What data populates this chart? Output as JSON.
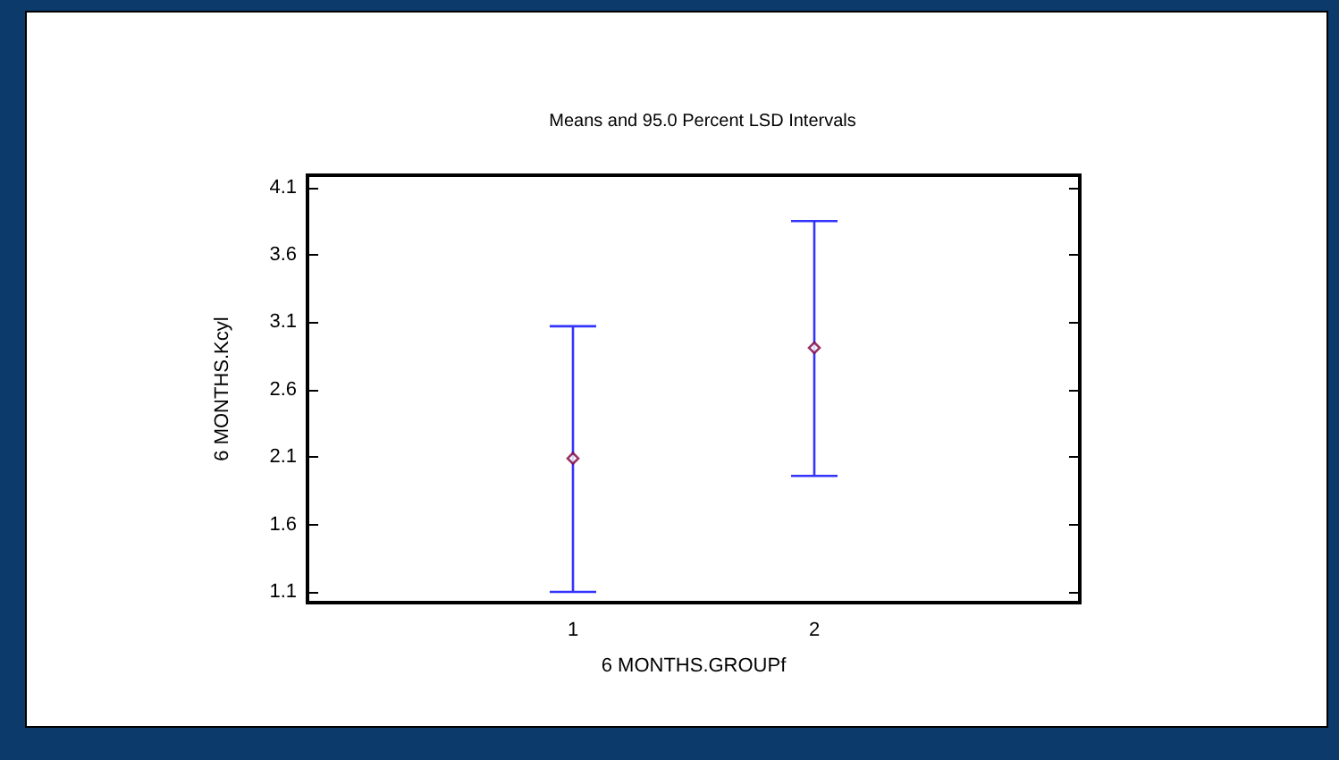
{
  "chart_data": {
    "type": "scatter",
    "title": "Means and 95.0 Percent LSD Intervals",
    "xlabel": "6 MONTHS.GROUPf",
    "ylabel": "6 MONTHS.Kcyl",
    "x": [
      1,
      2
    ],
    "series": [
      {
        "color": "#800040",
        "values": [
          2.09,
          2.91
        ],
        "errors": [
          [
            1.1,
            3.07
          ],
          [
            1.96,
            3.85
          ]
        ]
      }
    ],
    "xlim": [
      -0.1,
      3.1
    ],
    "xticks": [
      1,
      2
    ],
    "ylim": [
      1.02,
      4.19
    ],
    "yticks": [
      1.1,
      1.6,
      2.1,
      2.6,
      3.1,
      3.6,
      4.1
    ],
    "marker": "diamond",
    "grid": false
  }
}
